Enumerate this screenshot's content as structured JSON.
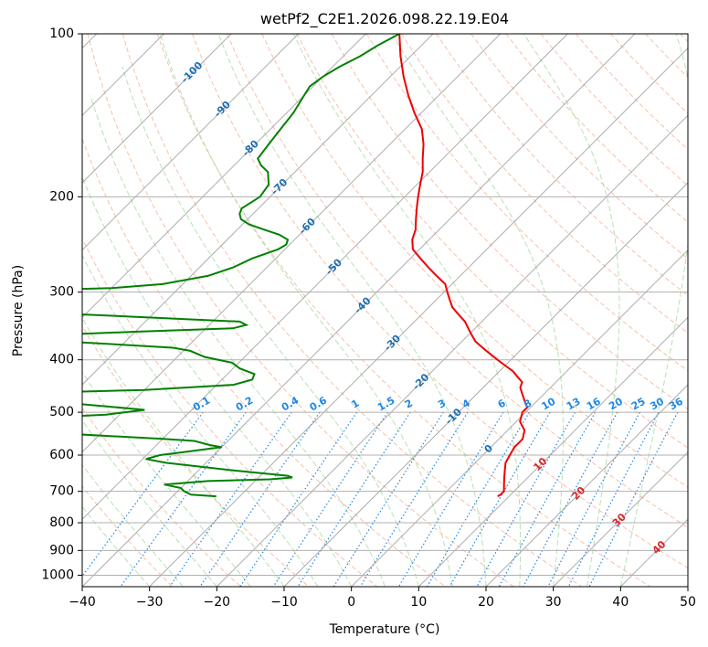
{
  "chart_data": {
    "type": "line",
    "diagram": "skew-t",
    "title": "wetPf2_C2E1.2026.098.22.19.E04",
    "xlabel": "Temperature (°C)",
    "ylabel": "Pressure (hPa)",
    "xlim": [
      -40,
      50
    ],
    "ylim": [
      1050,
      100
    ],
    "y_scale": "log",
    "x_ticks": [
      -40,
      -30,
      -20,
      -10,
      0,
      10,
      20,
      30,
      40,
      50
    ],
    "y_ticks": [
      100,
      200,
      300,
      400,
      500,
      600,
      700,
      800,
      900,
      1000
    ],
    "grid": true,
    "colors": {
      "temperature": "#ee0000",
      "dewpoint": "#008000",
      "isotherm_labels": "#1f6fb0",
      "mixing_ratio": "#1e88e5",
      "dry_adiabat": "#f4a582",
      "moist_adiabat": "#a6d9a0",
      "isotherm_line": "#999999",
      "dry_adiabat_labels": "#d62728"
    },
    "isotherm_labels": [
      {
        "text": "-100",
        "t": -100,
        "p": 118
      },
      {
        "text": "-90",
        "t": -90,
        "p": 138
      },
      {
        "text": "-80",
        "t": -80,
        "p": 163
      },
      {
        "text": "-70",
        "t": -70,
        "p": 192
      },
      {
        "text": "-60",
        "t": -60,
        "p": 227
      },
      {
        "text": "-50",
        "t": -50,
        "p": 270
      },
      {
        "text": "-40",
        "t": -40,
        "p": 318
      },
      {
        "text": "-30",
        "t": -30,
        "p": 373
      },
      {
        "text": "-20",
        "t": -20,
        "p": 440
      },
      {
        "text": "-10",
        "t": -10,
        "p": 510
      },
      {
        "text": "0",
        "t": 0,
        "p": 585
      }
    ],
    "mixing_ratio_labels": [
      "0.1",
      "0.2",
      "0.4",
      "0.6",
      "1",
      "1.5",
      "2",
      "3",
      "4",
      "6",
      "8",
      "10",
      "13",
      "16",
      "20",
      "25",
      "30",
      "36"
    ],
    "mixing_ratio_values": [
      0.1,
      0.2,
      0.4,
      0.6,
      1,
      1.5,
      2,
      3,
      4,
      6,
      8,
      10,
      13,
      16,
      20,
      25,
      30,
      36
    ],
    "mixing_ratio_label_pressure": 500,
    "dry_adiabat_labels": [
      {
        "text": "10",
        "t": 10,
        "p": 625
      },
      {
        "text": "20",
        "t": 20,
        "p": 707
      },
      {
        "text": "30",
        "t": 30,
        "p": 792
      },
      {
        "text": "40",
        "t": 40,
        "p": 890
      }
    ],
    "series": [
      {
        "name": "temperature",
        "points": [
          [
            100,
            -75.0
          ],
          [
            110,
            -71.5
          ],
          [
            120,
            -68.0
          ],
          [
            130,
            -64.5
          ],
          [
            140,
            -61.0
          ],
          [
            150,
            -57.5
          ],
          [
            160,
            -55.0
          ],
          [
            170,
            -53.0
          ],
          [
            180,
            -51.0
          ],
          [
            190,
            -49.5
          ],
          [
            200,
            -48.0
          ],
          [
            210,
            -46.5
          ],
          [
            220,
            -45.0
          ],
          [
            230,
            -43.5
          ],
          [
            240,
            -42.5
          ],
          [
            250,
            -41.0
          ],
          [
            260,
            -38.5
          ],
          [
            270,
            -36.0
          ],
          [
            280,
            -33.5
          ],
          [
            290,
            -31.0
          ],
          [
            300,
            -29.5
          ],
          [
            310,
            -28.0
          ],
          [
            320,
            -26.5
          ],
          [
            330,
            -24.5
          ],
          [
            340,
            -22.5
          ],
          [
            350,
            -21.0
          ],
          [
            360,
            -19.5
          ],
          [
            370,
            -18.0
          ],
          [
            380,
            -16.0
          ],
          [
            390,
            -14.0
          ],
          [
            400,
            -12.0
          ],
          [
            410,
            -10.0
          ],
          [
            420,
            -8.0
          ],
          [
            430,
            -6.5
          ],
          [
            440,
            -5.0
          ],
          [
            450,
            -4.5
          ],
          [
            460,
            -3.5
          ],
          [
            470,
            -2.5
          ],
          [
            480,
            -1.5
          ],
          [
            490,
            -0.5
          ],
          [
            500,
            -0.5
          ],
          [
            510,
            0.0
          ],
          [
            520,
            0.5
          ],
          [
            530,
            1.5
          ],
          [
            540,
            2.5
          ],
          [
            550,
            3.0
          ],
          [
            560,
            3.5
          ],
          [
            580,
            3.5
          ],
          [
            600,
            4.0
          ],
          [
            620,
            4.5
          ],
          [
            640,
            5.5
          ],
          [
            660,
            6.5
          ],
          [
            680,
            7.5
          ],
          [
            700,
            8.5
          ],
          [
            710,
            8.5
          ],
          [
            715,
            8.3
          ]
        ]
      },
      {
        "name": "dewpoint",
        "points": [
          [
            100,
            -75.0
          ],
          [
            105,
            -76.5
          ],
          [
            110,
            -77.5
          ],
          [
            115,
            -79.0
          ],
          [
            120,
            -80.0
          ],
          [
            125,
            -80.5
          ],
          [
            130,
            -80.0
          ],
          [
            140,
            -79.0
          ],
          [
            150,
            -78.5
          ],
          [
            160,
            -78.0
          ],
          [
            170,
            -77.5
          ],
          [
            175,
            -76.0
          ],
          [
            180,
            -74.0
          ],
          [
            190,
            -72.0
          ],
          [
            200,
            -71.5
          ],
          [
            205,
            -72.0
          ],
          [
            210,
            -72.5
          ],
          [
            215,
            -72.0
          ],
          [
            220,
            -71.0
          ],
          [
            225,
            -69.0
          ],
          [
            230,
            -66.0
          ],
          [
            235,
            -63.0
          ],
          [
            240,
            -61.0
          ],
          [
            245,
            -60.5
          ],
          [
            250,
            -61.0
          ],
          [
            260,
            -63.5
          ],
          [
            270,
            -65.0
          ],
          [
            280,
            -67.5
          ],
          [
            290,
            -73.0
          ],
          [
            295,
            -80.0
          ],
          [
            300,
            -102.0
          ],
          [
            305,
            -104.0
          ],
          [
            315,
            -104.5
          ],
          [
            325,
            -103.0
          ],
          [
            330,
            -80.0
          ],
          [
            340,
            -56.0
          ],
          [
            345,
            -54.5
          ],
          [
            350,
            -56.0
          ],
          [
            355,
            -70.0
          ],
          [
            360,
            -82.0
          ],
          [
            365,
            -86.0
          ],
          [
            370,
            -79.0
          ],
          [
            380,
            -62.0
          ],
          [
            385,
            -59.0
          ],
          [
            395,
            -56.0
          ],
          [
            405,
            -51.0
          ],
          [
            415,
            -49.0
          ],
          [
            425,
            -46.0
          ],
          [
            435,
            -45.5
          ],
          [
            445,
            -47.5
          ],
          [
            455,
            -60.0
          ],
          [
            460,
            -75.0
          ],
          [
            470,
            -80.0
          ],
          [
            480,
            -70.0
          ],
          [
            495,
            -57.0
          ],
          [
            505,
            -62.0
          ],
          [
            515,
            -75.0
          ],
          [
            525,
            -80.0
          ],
          [
            540,
            -75.0
          ],
          [
            560,
            -50.0
          ],
          [
            565,
            -45.0
          ],
          [
            575,
            -42.0
          ],
          [
            580,
            -40.0
          ],
          [
            590,
            -44.0
          ],
          [
            600,
            -48.0
          ],
          [
            610,
            -49.5
          ],
          [
            620,
            -46.0
          ],
          [
            640,
            -35.0
          ],
          [
            655,
            -26.0
          ],
          [
            660,
            -25.0
          ],
          [
            665,
            -28.0
          ],
          [
            670,
            -37.0
          ],
          [
            680,
            -43.0
          ],
          [
            690,
            -40.0
          ],
          [
            700,
            -39.0
          ],
          [
            710,
            -37.5
          ],
          [
            715,
            -33.5
          ]
        ]
      }
    ]
  }
}
